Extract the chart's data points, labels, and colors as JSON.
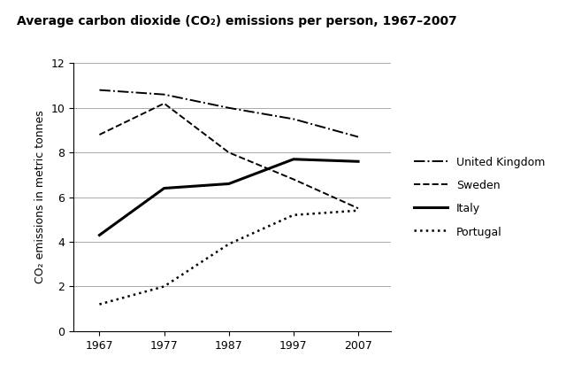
{
  "title": "Average carbon dioxide (CO₂) emissions per person, 1967–2007",
  "ylabel": "CO₂ emissions in metric tonnes",
  "years": [
    1967,
    1977,
    1987,
    1997,
    2007
  ],
  "series": {
    "United Kingdom": {
      "values": [
        10.8,
        10.6,
        10.0,
        9.5,
        8.7
      ],
      "linestyle": "dashdot",
      "color": "#000000",
      "linewidth": 1.4
    },
    "Sweden": {
      "values": [
        8.8,
        10.2,
        8.0,
        6.8,
        5.5
      ],
      "linestyle": "dashed",
      "color": "#000000",
      "linewidth": 1.4
    },
    "Italy": {
      "values": [
        4.3,
        6.4,
        6.6,
        7.7,
        7.6
      ],
      "linestyle": "solid",
      "color": "#000000",
      "linewidth": 2.2
    },
    "Portugal": {
      "values": [
        1.2,
        2.0,
        3.9,
        5.2,
        5.4
      ],
      "linestyle": "dotted",
      "color": "#000000",
      "linewidth": 1.8
    }
  },
  "xlim": [
    1963,
    2012
  ],
  "ylim": [
    0,
    12
  ],
  "yticks": [
    0,
    2,
    4,
    6,
    8,
    10,
    12
  ],
  "xticks": [
    1967,
    1977,
    1987,
    1997,
    2007
  ],
  "background_color": "#ffffff"
}
